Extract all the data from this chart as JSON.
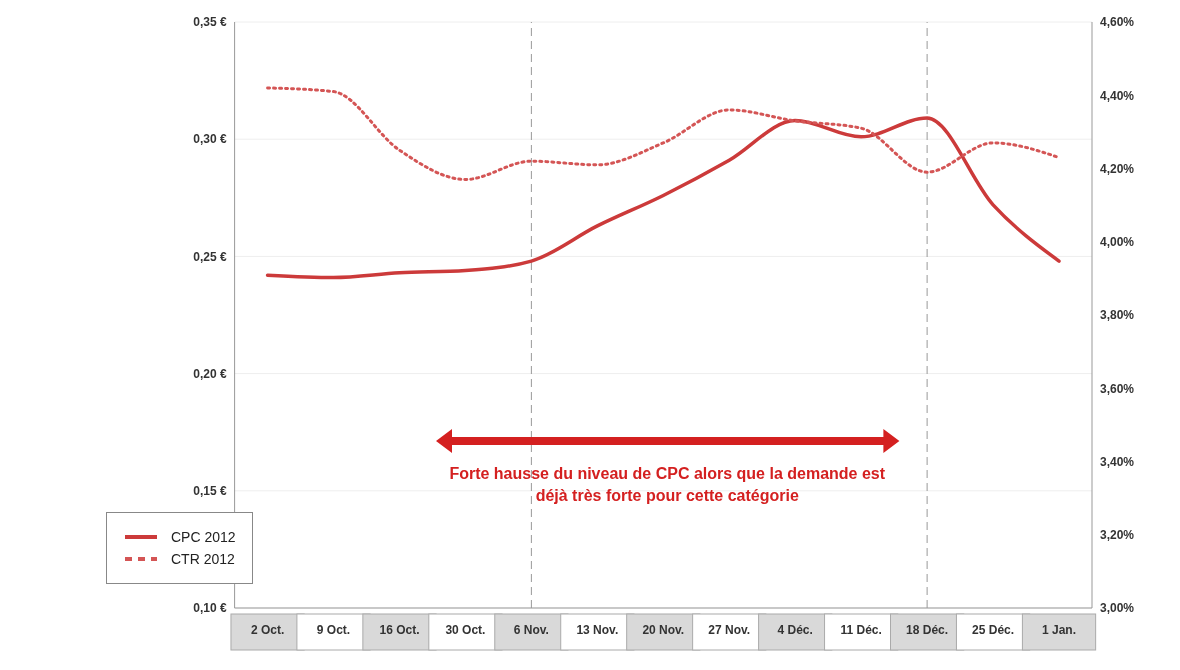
{
  "chart_data": {
    "type": "line",
    "categories": [
      "2 Oct.",
      "9 Oct.",
      "16 Oct.",
      "30 Oct.",
      "6 Nov.",
      "13 Nov.",
      "20 Nov.",
      "27 Nov.",
      "4 Déc.",
      "11 Déc.",
      "18 Déc.",
      "25 Déc.",
      "1 Jan."
    ],
    "series": [
      {
        "name": "CPC 2012",
        "color": "#cc3a3a",
        "line_style": "solid",
        "values": [
          0.242,
          0.241,
          0.243,
          0.244,
          0.248,
          0.263,
          0.276,
          0.291,
          0.308,
          0.301,
          0.309,
          0.272,
          0.248
        ]
      },
      {
        "name": "CTR 2012",
        "color": "#d45555",
        "line_style": "dotted",
        "axis": "y2",
        "values": [
          4.42,
          4.41,
          4.25,
          4.17,
          4.22,
          4.21,
          4.27,
          4.36,
          4.33,
          4.31,
          4.19,
          4.27,
          4.23
        ]
      }
    ],
    "ylim": [
      0.1,
      0.35
    ],
    "yticks": [
      {
        "value": 0.1,
        "label": "0,10 €"
      },
      {
        "value": 0.15,
        "label": "0,15 €"
      },
      {
        "value": 0.2,
        "label": "0,20 €"
      },
      {
        "value": 0.25,
        "label": "0,25 €"
      },
      {
        "value": 0.3,
        "label": "0,30 €"
      },
      {
        "value": 0.35,
        "label": "0,35 €"
      }
    ],
    "y2lim": [
      3.0,
      4.6
    ],
    "y2ticks": [
      {
        "value": 3.0,
        "label": "3,00%"
      },
      {
        "value": 3.2,
        "label": "3,20%"
      },
      {
        "value": 3.4,
        "label": "3,40%"
      },
      {
        "value": 3.6,
        "label": "3,60%"
      },
      {
        "value": 3.8,
        "label": "3,80%"
      },
      {
        "value": 4.0,
        "label": "4,00%"
      },
      {
        "value": 4.2,
        "label": "4,20%"
      },
      {
        "value": 4.4,
        "label": "4,40%"
      },
      {
        "value": 4.6,
        "label": "4,60%"
      }
    ],
    "ref_lines": [
      {
        "axis": "x",
        "value": "6 Nov.",
        "color": "#999999",
        "line_style": "dashed"
      },
      {
        "axis": "x",
        "value": "18 Déc.",
        "color": "#999999",
        "line_style": "dashed"
      }
    ],
    "annotations": [
      "Forte hausse du niveau de CPC alors que la demande est déjà très forte pour cette catégorie"
    ],
    "grid": "y",
    "legend": "bottom left",
    "marker": "none"
  }
}
